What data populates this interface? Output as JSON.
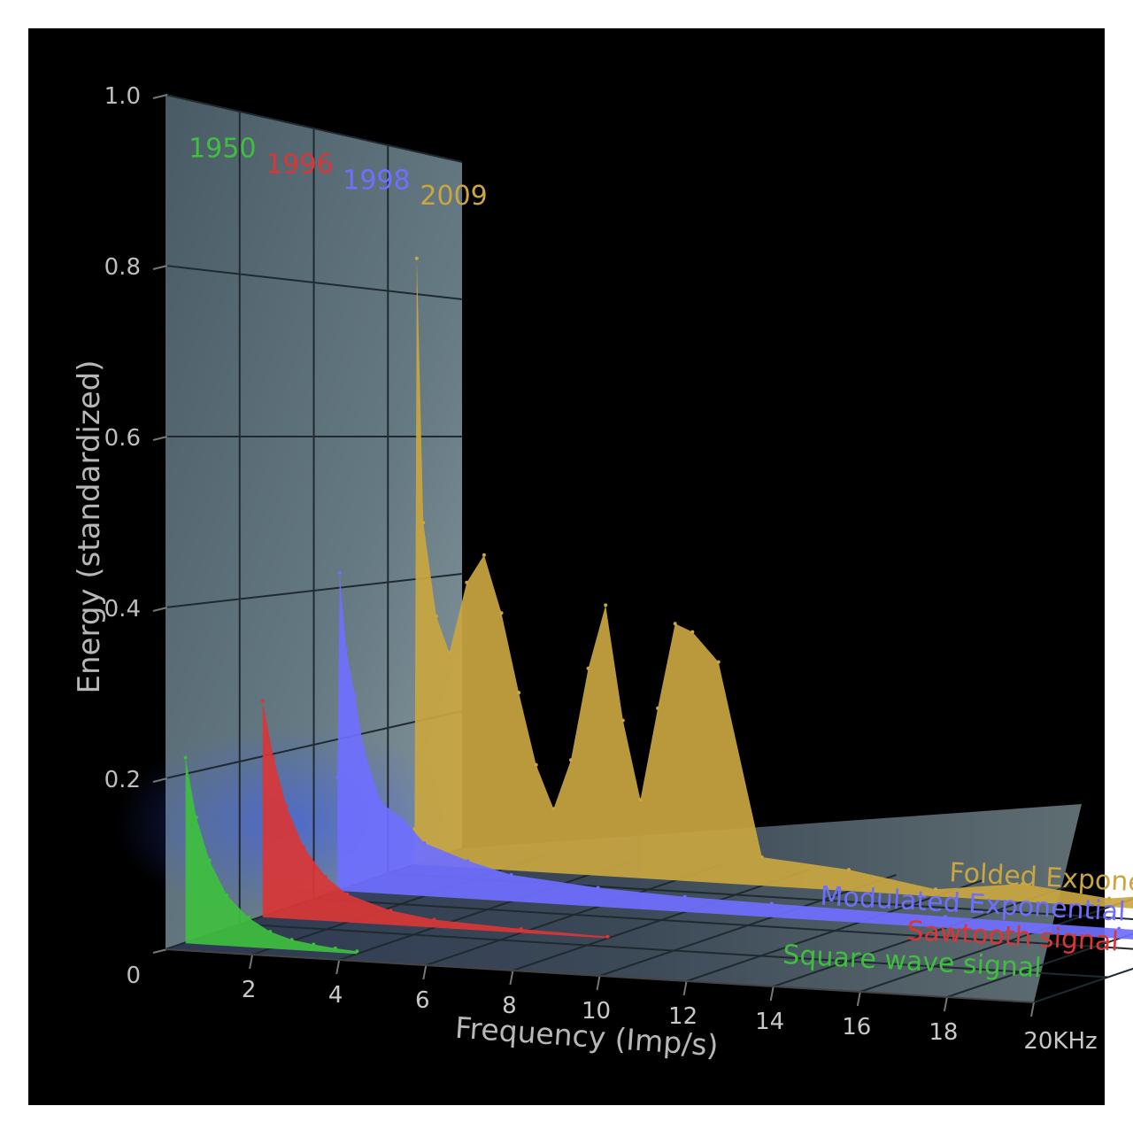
{
  "chart_data": {
    "type": "area",
    "view": "3d-waterfall",
    "ylabel": "Energy (standardized)",
    "xlabel": "Frequency (Imp/s)",
    "y_ticks": [
      "0",
      "0.2",
      "0.4",
      "0.6",
      "0.8",
      "1.0"
    ],
    "x_ticks": [
      "2",
      "4",
      "6",
      "8",
      "10",
      "12",
      "14",
      "16",
      "18",
      "20KHz"
    ],
    "ylim": [
      0,
      1.0
    ],
    "xlim": [
      0,
      20
    ],
    "grid": true,
    "series": [
      {
        "name": "Square wave signal",
        "year": "1950",
        "color": "#3fbf3f",
        "x": [
          0.05,
          0.3,
          0.6,
          1.0,
          1.5,
          2.0,
          2.5,
          3.0,
          3.5,
          4.0
        ],
        "values": [
          0.22,
          0.15,
          0.1,
          0.06,
          0.035,
          0.02,
          0.012,
          0.008,
          0.005,
          0.003
        ]
      },
      {
        "name": "Sawtooth signal",
        "year": "1996",
        "color": "#d93636",
        "x": [
          0.05,
          0.3,
          0.6,
          1.0,
          1.5,
          2.0,
          3.0,
          4.0,
          6.0,
          8.0
        ],
        "values": [
          0.27,
          0.2,
          0.14,
          0.09,
          0.055,
          0.035,
          0.018,
          0.01,
          0.005,
          0.002
        ]
      },
      {
        "name": "Modulated Exponential form",
        "year": "1998",
        "color": "#6f6fff",
        "x": [
          0.0,
          0.05,
          0.2,
          0.4,
          0.6,
          1.0,
          1.5,
          2.0,
          3.0,
          4.0,
          6.0,
          8.0,
          10.0,
          14.0,
          18.0,
          20.0
        ],
        "values": [
          0.15,
          0.42,
          0.32,
          0.26,
          0.19,
          0.12,
          0.1,
          0.07,
          0.05,
          0.035,
          0.025,
          0.02,
          0.018,
          0.015,
          0.013,
          0.012
        ]
      },
      {
        "name": "Folded Exponential form",
        "year": "2009",
        "color": "#c9a640",
        "x": [
          0.0,
          0.05,
          0.2,
          0.5,
          0.8,
          1.2,
          1.6,
          2.0,
          2.4,
          2.8,
          3.2,
          3.6,
          4.0,
          4.4,
          4.8,
          5.2,
          5.6,
          6.0,
          6.4,
          7.0,
          8.0,
          10.0,
          12.0,
          14.0,
          16.0,
          18.0,
          20.0
        ],
        "values": [
          0.05,
          0.85,
          0.48,
          0.35,
          0.3,
          0.4,
          0.44,
          0.36,
          0.25,
          0.15,
          0.09,
          0.16,
          0.29,
          0.38,
          0.22,
          0.11,
          0.24,
          0.36,
          0.35,
          0.31,
          0.04,
          0.03,
          0.01,
          0.025,
          0.012,
          0.028,
          0.012
        ]
      }
    ]
  }
}
